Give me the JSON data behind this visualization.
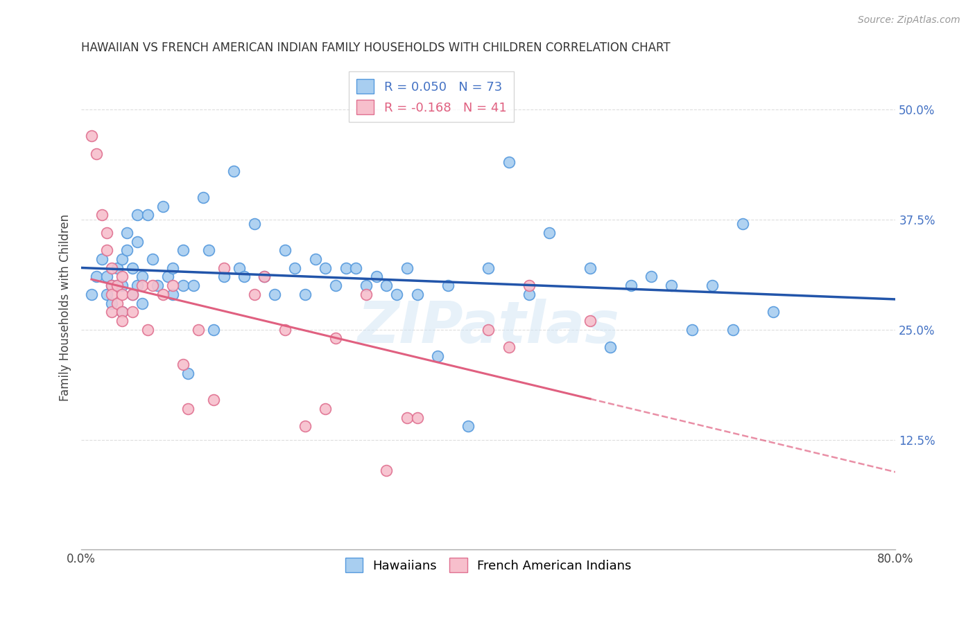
{
  "title": "HAWAIIAN VS FRENCH AMERICAN INDIAN FAMILY HOUSEHOLDS WITH CHILDREN CORRELATION CHART",
  "source": "Source: ZipAtlas.com",
  "ylabel": "Family Households with Children",
  "xlim": [
    0.0,
    0.8
  ],
  "ylim": [
    0.0,
    0.55
  ],
  "color_hawaiian_fill": "#a8cef0",
  "color_hawaiian_edge": "#5599dd",
  "color_french_fill": "#f7bfcc",
  "color_french_edge": "#e07090",
  "color_line_hawaiian": "#2255aa",
  "color_line_french": "#e06080",
  "background": "#ffffff",
  "grid_color": "#dddddd",
  "hawaiian_x": [
    0.01,
    0.015,
    0.02,
    0.025,
    0.025,
    0.03,
    0.03,
    0.035,
    0.035,
    0.04,
    0.04,
    0.04,
    0.045,
    0.045,
    0.05,
    0.05,
    0.055,
    0.055,
    0.055,
    0.06,
    0.06,
    0.065,
    0.07,
    0.075,
    0.08,
    0.085,
    0.09,
    0.09,
    0.1,
    0.1,
    0.105,
    0.11,
    0.12,
    0.125,
    0.13,
    0.14,
    0.15,
    0.155,
    0.16,
    0.17,
    0.18,
    0.19,
    0.2,
    0.21,
    0.22,
    0.23,
    0.24,
    0.25,
    0.26,
    0.27,
    0.28,
    0.29,
    0.3,
    0.31,
    0.32,
    0.33,
    0.35,
    0.36,
    0.38,
    0.4,
    0.42,
    0.44,
    0.46,
    0.5,
    0.52,
    0.54,
    0.56,
    0.58,
    0.6,
    0.62,
    0.64,
    0.65,
    0.68
  ],
  "hawaiian_y": [
    0.29,
    0.31,
    0.33,
    0.31,
    0.29,
    0.3,
    0.28,
    0.32,
    0.3,
    0.33,
    0.3,
    0.27,
    0.36,
    0.34,
    0.32,
    0.29,
    0.38,
    0.35,
    0.3,
    0.31,
    0.28,
    0.38,
    0.33,
    0.3,
    0.39,
    0.31,
    0.32,
    0.29,
    0.34,
    0.3,
    0.2,
    0.3,
    0.4,
    0.34,
    0.25,
    0.31,
    0.43,
    0.32,
    0.31,
    0.37,
    0.31,
    0.29,
    0.34,
    0.32,
    0.29,
    0.33,
    0.32,
    0.3,
    0.32,
    0.32,
    0.3,
    0.31,
    0.3,
    0.29,
    0.32,
    0.29,
    0.22,
    0.3,
    0.14,
    0.32,
    0.44,
    0.29,
    0.36,
    0.32,
    0.23,
    0.3,
    0.31,
    0.3,
    0.25,
    0.3,
    0.25,
    0.37,
    0.27
  ],
  "french_x": [
    0.01,
    0.015,
    0.02,
    0.025,
    0.025,
    0.03,
    0.03,
    0.03,
    0.03,
    0.035,
    0.035,
    0.04,
    0.04,
    0.04,
    0.04,
    0.05,
    0.05,
    0.06,
    0.065,
    0.07,
    0.08,
    0.09,
    0.1,
    0.105,
    0.115,
    0.13,
    0.14,
    0.17,
    0.18,
    0.2,
    0.22,
    0.24,
    0.25,
    0.28,
    0.3,
    0.32,
    0.33,
    0.4,
    0.42,
    0.44,
    0.5
  ],
  "french_y": [
    0.47,
    0.45,
    0.38,
    0.36,
    0.34,
    0.32,
    0.3,
    0.29,
    0.27,
    0.3,
    0.28,
    0.31,
    0.29,
    0.27,
    0.26,
    0.29,
    0.27,
    0.3,
    0.25,
    0.3,
    0.29,
    0.3,
    0.21,
    0.16,
    0.25,
    0.17,
    0.32,
    0.29,
    0.31,
    0.25,
    0.14,
    0.16,
    0.24,
    0.29,
    0.09,
    0.15,
    0.15,
    0.25,
    0.23,
    0.3,
    0.26
  ],
  "r_hawaiian": 0.05,
  "n_hawaiian": 73,
  "r_french": -0.168,
  "n_french": 41
}
